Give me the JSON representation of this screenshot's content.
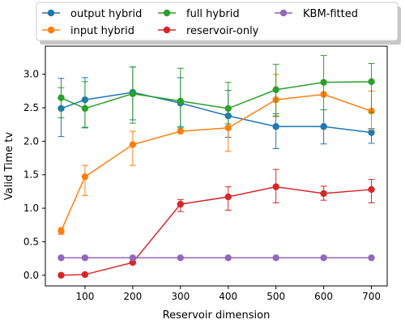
{
  "chart_data": {
    "type": "line",
    "title": "",
    "xlabel": "Reservoir dimension",
    "ylabel": "Valid Time tv",
    "x": [
      50,
      100,
      200,
      300,
      400,
      500,
      600,
      700
    ],
    "xlim": [
      17,
      733
    ],
    "ylim": [
      -0.16,
      3.42
    ],
    "xticks": [
      100,
      200,
      300,
      400,
      500,
      600,
      700
    ],
    "yticks": [
      0.0,
      0.5,
      1.0,
      1.5,
      2.0,
      2.5,
      3.0
    ],
    "xtick_labels": [
      "100",
      "200",
      "300",
      "400",
      "500",
      "600",
      "700"
    ],
    "ytick_labels": [
      "0.0",
      "0.5",
      "1.0",
      "1.5",
      "2.0",
      "2.5",
      "3.0"
    ],
    "grid": false,
    "legend_position": "top, outside plot, 3 columns",
    "series": [
      {
        "name": "output hybrid",
        "color": "#1f77b4",
        "values": [
          2.49,
          2.62,
          2.73,
          2.57,
          2.38,
          2.22,
          2.22,
          2.13
        ],
        "err_low": [
          0.42,
          0.42,
          0.41,
          0.35,
          0.32,
          0.33,
          0.26,
          0.16
        ],
        "err_high": [
          0.45,
          0.33,
          0.38,
          0.38,
          0.38,
          0.19,
          0.25,
          0.06
        ]
      },
      {
        "name": "input hybrid",
        "color": "#ff7f0e",
        "values": [
          0.66,
          1.47,
          1.95,
          2.15,
          2.2,
          2.62,
          2.7,
          2.45
        ],
        "err_low": [
          0.05,
          0.28,
          0.31,
          0.0,
          0.35,
          0.24,
          0.0,
          0.28
        ],
        "err_high": [
          0.05,
          0.17,
          0.2,
          0.0,
          0.0,
          0.38,
          0.0,
          0.3
        ]
      },
      {
        "name": "full hybrid",
        "color": "#2ca02c",
        "values": [
          2.65,
          2.49,
          2.71,
          2.6,
          2.49,
          2.77,
          2.88,
          2.89
        ],
        "err_low": [
          0.3,
          0.28,
          0.44,
          0.4,
          0.23,
          0.4,
          0.41,
          0.46
        ],
        "err_high": [
          0.15,
          0.4,
          0.4,
          0.49,
          0.39,
          0.38,
          0.4,
          0.27
        ]
      },
      {
        "name": "reservoir-only",
        "color": "#d62728",
        "values": [
          0.0,
          0.01,
          0.19,
          1.06,
          1.17,
          1.32,
          1.22,
          1.28
        ],
        "err_low": [
          0.0,
          0.0,
          0.0,
          0.11,
          0.2,
          0.24,
          0.1,
          0.2
        ],
        "err_high": [
          0.0,
          0.0,
          0.0,
          0.07,
          0.15,
          0.26,
          0.11,
          0.15
        ]
      },
      {
        "name": "KBM-fitted",
        "color": "#9467bd",
        "values": [
          0.26,
          0.26,
          0.26,
          0.26,
          0.26,
          0.26,
          0.26,
          0.26
        ],
        "err_low": [
          0,
          0,
          0,
          0,
          0,
          0,
          0,
          0
        ],
        "err_high": [
          0,
          0,
          0,
          0,
          0,
          0,
          0,
          0
        ]
      }
    ]
  }
}
